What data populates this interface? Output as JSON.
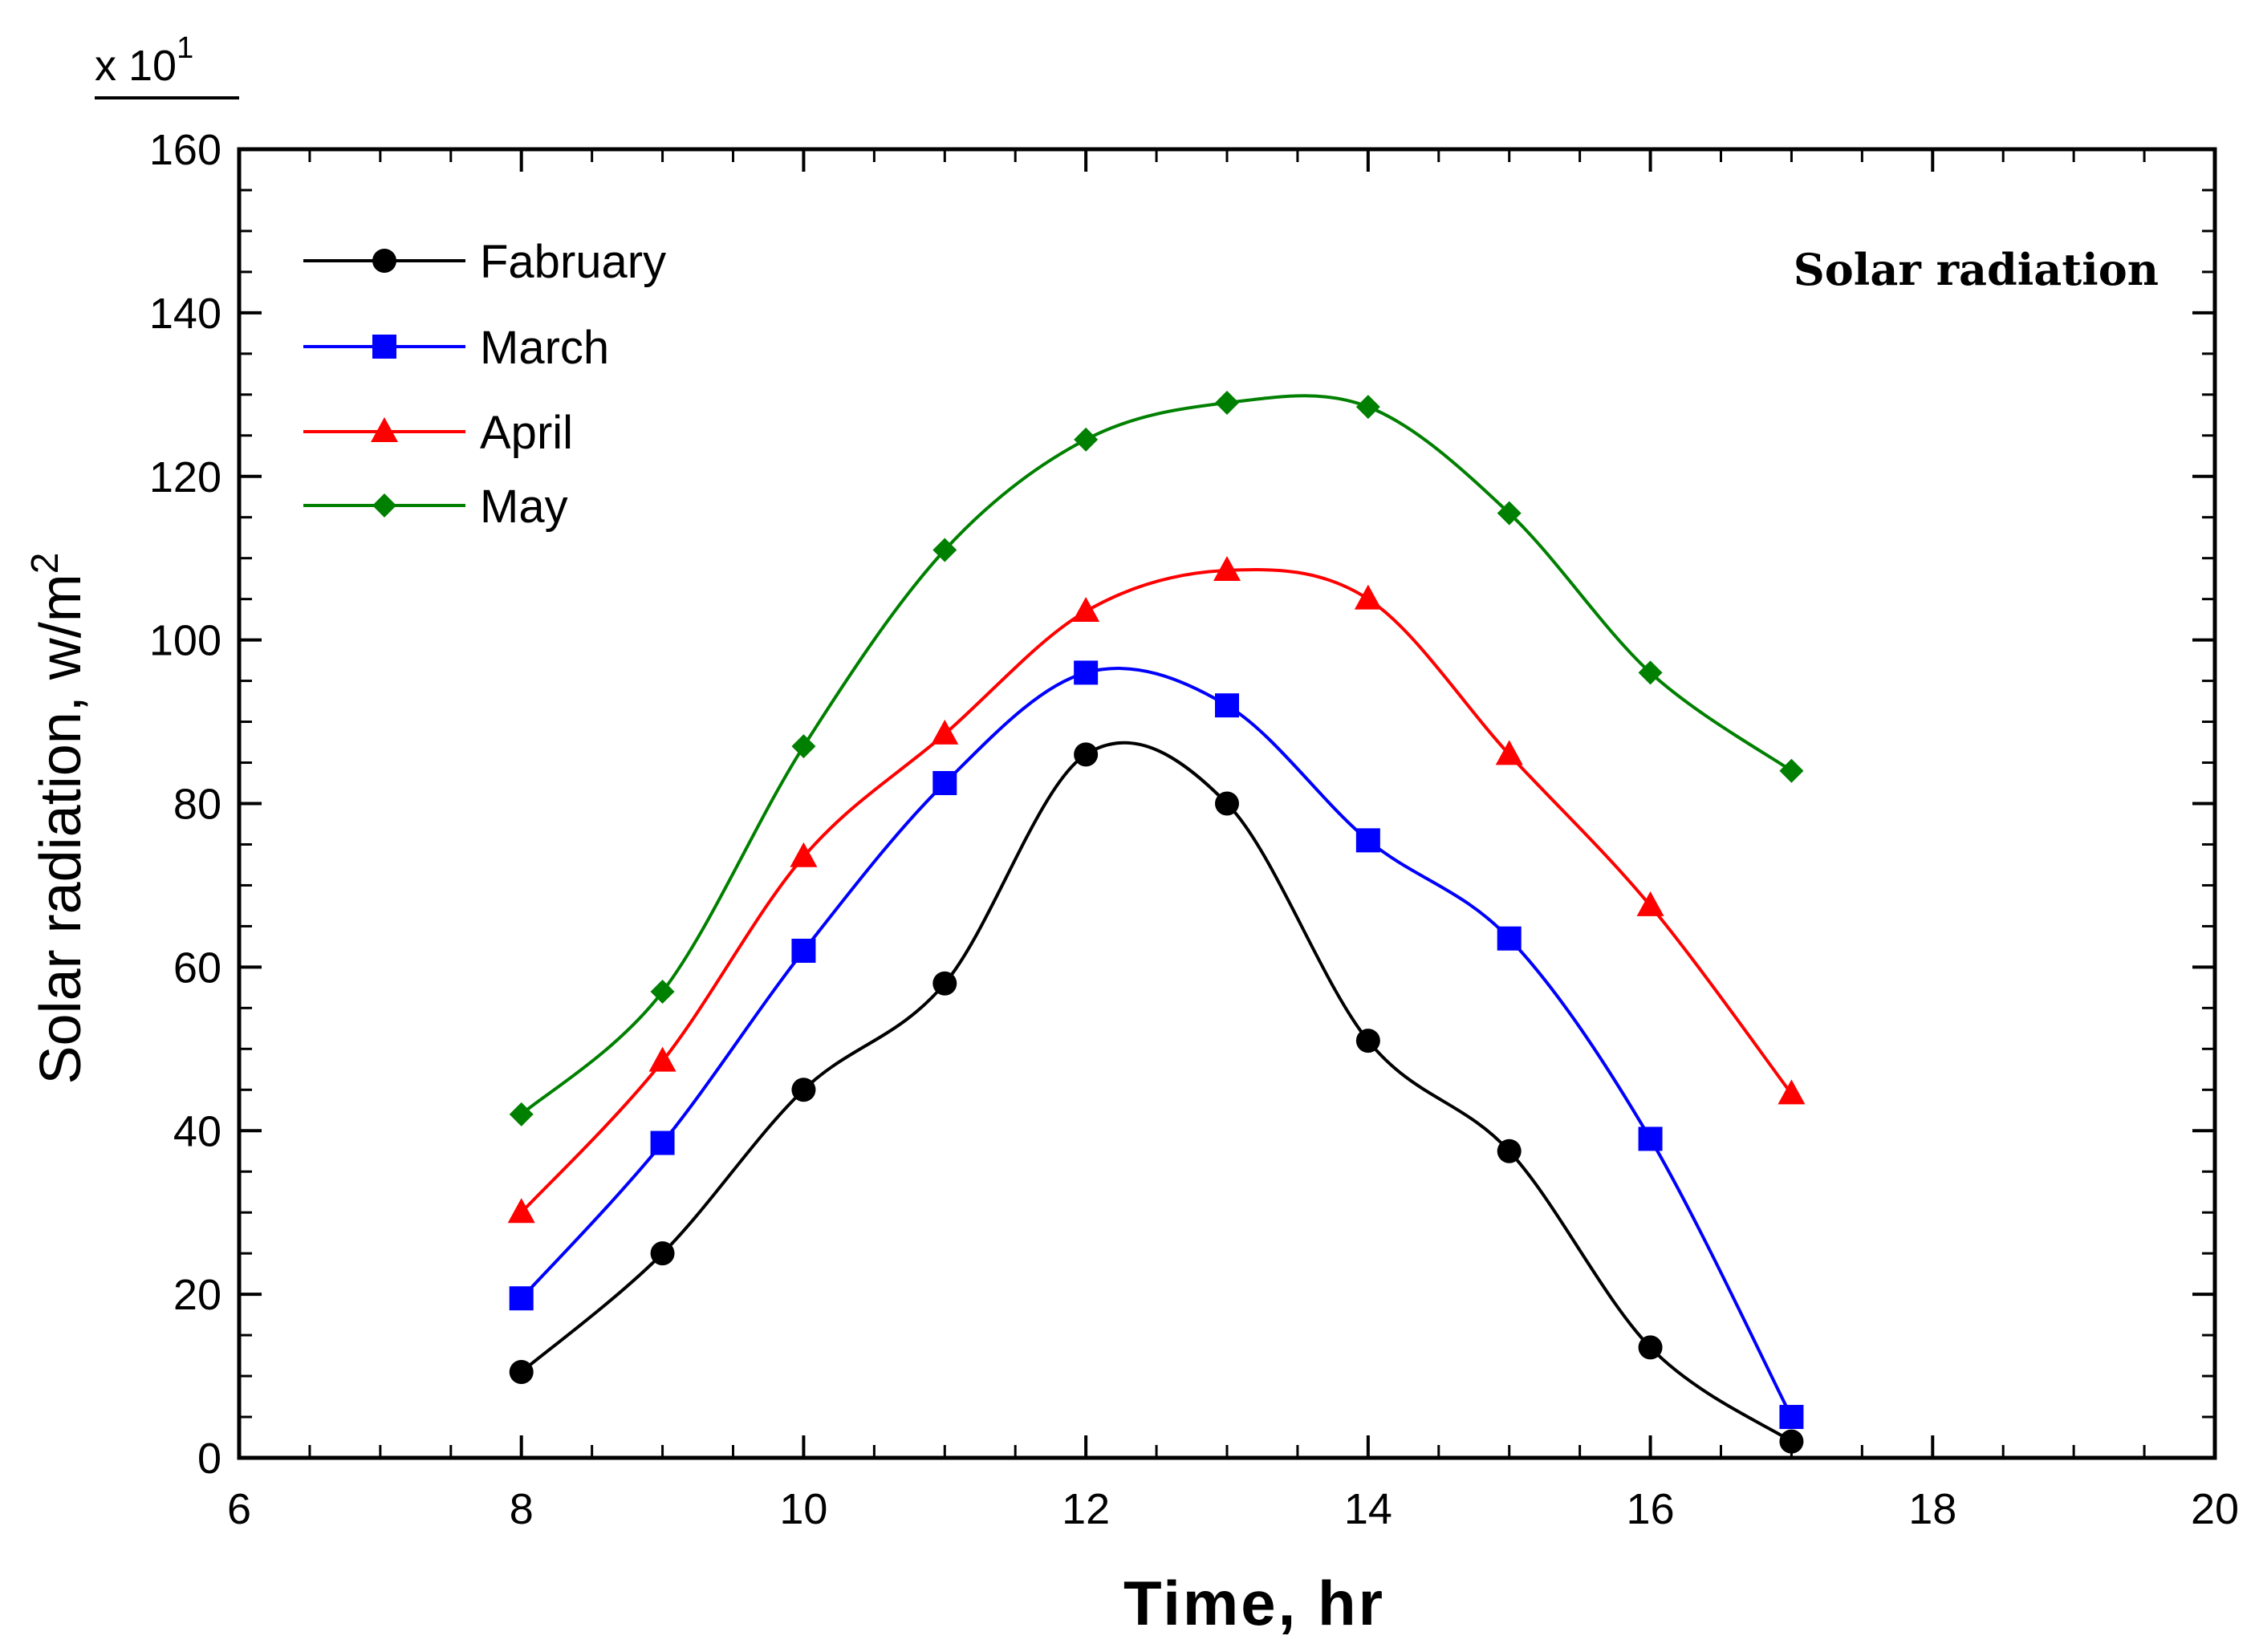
{
  "chart_data": {
    "type": "line",
    "title": "",
    "annotation": "Solar radiation",
    "xlabel": "Time, hr",
    "ylabel_text": "Solar radiation, w/m",
    "ylabel_sup": "2",
    "scale_base": "x 10",
    "scale_exp": "1",
    "xlim": [
      6,
      20
    ],
    "ylim": [
      0,
      160
    ],
    "xticks": [
      6,
      8,
      10,
      12,
      14,
      16,
      18,
      20
    ],
    "yticks": [
      0,
      20,
      40,
      60,
      80,
      100,
      120,
      140,
      160
    ],
    "legend_position": "top-left",
    "x": [
      8,
      9,
      10,
      11,
      12,
      13,
      14,
      15,
      16,
      17
    ],
    "series": [
      {
        "name": "Fabruary",
        "color": "#000000",
        "marker": "circle",
        "values": [
          10.5,
          25,
          45,
          58,
          86,
          80,
          51,
          37.5,
          13.5,
          2
        ]
      },
      {
        "name": "March",
        "color": "#0000ff",
        "marker": "square",
        "values": [
          19.5,
          38.5,
          62,
          82.5,
          96,
          92,
          75.5,
          63.5,
          39,
          5
        ]
      },
      {
        "name": "April",
        "color": "#ff0000",
        "marker": "triangle",
        "values": [
          30,
          48.5,
          73.5,
          88.5,
          103.5,
          108.5,
          105,
          86,
          67.5,
          44.5
        ]
      },
      {
        "name": "May",
        "color": "#008000",
        "marker": "diamond",
        "values": [
          42,
          57,
          87,
          111,
          124.5,
          129,
          128.5,
          115.5,
          96,
          84
        ]
      }
    ]
  }
}
